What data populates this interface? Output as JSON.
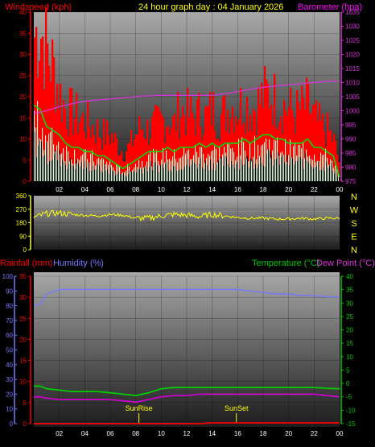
{
  "header": {
    "left_label": "Windspeed (kph)",
    "title": "24 hour graph day : 04 January 2026",
    "right_label": "Barometer (hpa)"
  },
  "x_ticks": [
    "02",
    "04",
    "06",
    "08",
    "10",
    "12",
    "14",
    "16",
    "18",
    "20",
    "22",
    "00"
  ],
  "colors": {
    "wind_gust": "#ff0000",
    "wind_avg": "#00dd00",
    "wind_dark": "#000000",
    "wind_light": "#d8ffd8",
    "barometer": "#dd33dd",
    "direction": "#ffff00",
    "humidity": "#7777ff",
    "temperature": "#00cc00",
    "dew_point": "#cc00cc",
    "rainfall": "#ff0000",
    "header_left": "#ff0000",
    "header_title": "#ffff00",
    "header_right": "#ff00ff"
  },
  "compass": [
    "N",
    "W",
    "S",
    "E",
    "N"
  ],
  "lower_header": {
    "rainfall": "Rainfall (mm)",
    "humidity": "Humidity (%)",
    "temperature": "Temperature (°C)",
    "dew_point": "Dew Point (°C)"
  },
  "sun": {
    "rise_label": "SunRise",
    "set_label": "SunSet",
    "rise_hour": 8.25,
    "set_hour": 15.9
  },
  "chart_data": [
    {
      "type": "line",
      "name": "wind-barometer",
      "title": "24 hour graph day : 04 January 2026",
      "ylabel": "Windspeed (kph)",
      "y2label": "Barometer (hpa)",
      "x_unit": "hours (00:00 to 24:00)",
      "ylim": [
        0,
        40
      ],
      "yticks": [
        0,
        5,
        10,
        15,
        20,
        25,
        30,
        35,
        40
      ],
      "y2lim": [
        975,
        1035
      ],
      "y2ticks": [
        975,
        980,
        985,
        990,
        995,
        1000,
        1005,
        1010,
        1015,
        1020,
        1025,
        1030,
        1035
      ],
      "x": [
        0,
        0.5,
        1,
        1.5,
        2,
        2.5,
        3,
        3.5,
        4,
        4.5,
        5,
        5.5,
        6,
        6.5,
        7,
        7.5,
        8,
        8.5,
        9,
        9.5,
        10,
        10.5,
        11,
        11.5,
        12,
        12.5,
        13,
        13.5,
        14,
        14.5,
        15,
        15.5,
        16,
        16.5,
        17,
        17.5,
        18,
        18.5,
        19,
        19.5,
        20,
        20.5,
        21,
        21.5,
        22,
        22.5,
        23,
        23.5,
        24
      ],
      "series": [
        {
          "name": "Wind gust",
          "values": [
            34,
            36,
            31,
            27,
            21,
            17,
            16,
            15,
            14,
            13,
            12,
            11,
            11,
            9,
            7,
            8,
            11,
            13,
            12,
            13,
            14,
            15,
            13,
            17,
            16,
            15,
            16,
            15,
            17,
            15,
            16,
            18,
            17,
            19,
            17,
            18,
            20,
            21,
            19,
            18,
            17,
            16,
            17,
            18,
            15,
            13,
            12,
            10,
            4
          ]
        },
        {
          "name": "Wind average",
          "values": [
            18,
            17,
            13,
            12,
            11,
            9,
            8,
            8,
            7,
            7,
            6,
            6,
            5,
            4,
            3,
            4,
            5,
            6,
            7,
            7,
            7,
            8,
            7,
            8,
            8,
            8,
            9,
            8,
            9,
            8,
            9,
            9,
            9,
            10,
            9,
            10,
            11,
            11,
            10,
            10,
            9,
            9,
            9,
            10,
            8,
            8,
            7,
            6,
            1
          ]
        },
        {
          "name": "Barometer",
          "values": [
            999,
            999.5,
            1000,
            1000.7,
            1001.4,
            1002,
            1002.5,
            1003,
            1003.3,
            1003.6,
            1003.8,
            1004,
            1004.2,
            1004.4,
            1004.6,
            1004.8,
            1005,
            1005.2,
            1005.3,
            1005.4,
            1005.5,
            1005.5,
            1005.5,
            1005.5,
            1005.5,
            1005.5,
            1005.5,
            1005.5,
            1005.5,
            1005.7,
            1006,
            1006.4,
            1006.8,
            1007.2,
            1007.6,
            1008,
            1008.3,
            1008.6,
            1008.8,
            1009,
            1009.2,
            1009.4,
            1009.6,
            1009.8,
            1010,
            1010.2,
            1010.4,
            1010.5,
            1010.5
          ]
        }
      ]
    },
    {
      "type": "line",
      "name": "wind-direction",
      "ylim": [
        0,
        360
      ],
      "yticks": [
        0,
        90,
        180,
        270,
        360
      ],
      "x": [
        0,
        1,
        2,
        3,
        4,
        5,
        6,
        7,
        8,
        9,
        10,
        11,
        12,
        13,
        14,
        15,
        16,
        17,
        18,
        19,
        20,
        21,
        22,
        23,
        24
      ],
      "series": [
        {
          "name": "Wind direction",
          "values": [
            215,
            240,
            245,
            235,
            230,
            225,
            235,
            230,
            210,
            210,
            225,
            235,
            230,
            220,
            235,
            225,
            215,
            210,
            210,
            205,
            205,
            210,
            205,
            210,
            210
          ]
        }
      ]
    },
    {
      "type": "line",
      "name": "humidity-temperature",
      "y1label": "Humidity (%)",
      "y1lim": [
        0,
        100
      ],
      "y1ticks": [
        0,
        10,
        20,
        30,
        40,
        50,
        60,
        70,
        80,
        90,
        100
      ],
      "y2label": "Rainfall (mm)",
      "y2lim": [
        0,
        35
      ],
      "y2ticks": [
        0,
        5,
        10,
        15,
        20,
        25,
        30,
        35
      ],
      "y3label": "Temperature (°C)",
      "y3lim": [
        -15,
        40
      ],
      "y3ticks": [
        -15,
        -10,
        -5,
        0,
        5,
        10,
        15,
        20,
        25,
        30,
        35,
        40
      ],
      "x": [
        0,
        0.5,
        1,
        2,
        3,
        4,
        5,
        6,
        7,
        8,
        9,
        10,
        11,
        12,
        13,
        14,
        15,
        16,
        17,
        18,
        19,
        20,
        21,
        22,
        23,
        24
      ],
      "series": [
        {
          "name": "Humidity",
          "values": [
            80,
            81,
            88,
            91,
            91,
            91,
            91,
            91,
            91,
            91,
            91,
            91,
            91,
            91,
            91,
            91,
            91,
            91,
            90,
            89,
            88,
            88,
            87,
            87,
            86,
            86
          ]
        },
        {
          "name": "Temperature",
          "values": [
            -1,
            -1,
            -2,
            -2.5,
            -3,
            -3,
            -3,
            -3.5,
            -4,
            -4.5,
            -3.5,
            -2,
            -1.5,
            -1.5,
            -1.5,
            -1.5,
            -1.5,
            -1.5,
            -1.5,
            -1.5,
            -1.5,
            -1.5,
            -1.5,
            -1.5,
            -1.8,
            -2
          ]
        },
        {
          "name": "Dew Point",
          "values": [
            -5,
            -5,
            -5.5,
            -6,
            -6,
            -6,
            -6,
            -6,
            -6.5,
            -7,
            -6,
            -5,
            -4.5,
            -4.5,
            -4,
            -4,
            -4,
            -4,
            -4,
            -4,
            -4,
            -4,
            -4,
            -4,
            -4.5,
            -5
          ]
        },
        {
          "name": "Rainfall",
          "values": [
            0,
            0,
            0,
            0,
            0,
            0,
            0,
            0,
            0,
            0,
            0,
            0,
            0,
            0,
            0,
            0.2,
            0.2,
            0.2,
            0.2,
            0.2,
            0.2,
            0.2,
            0.2,
            0.2,
            0.2,
            0.2
          ]
        }
      ]
    }
  ]
}
